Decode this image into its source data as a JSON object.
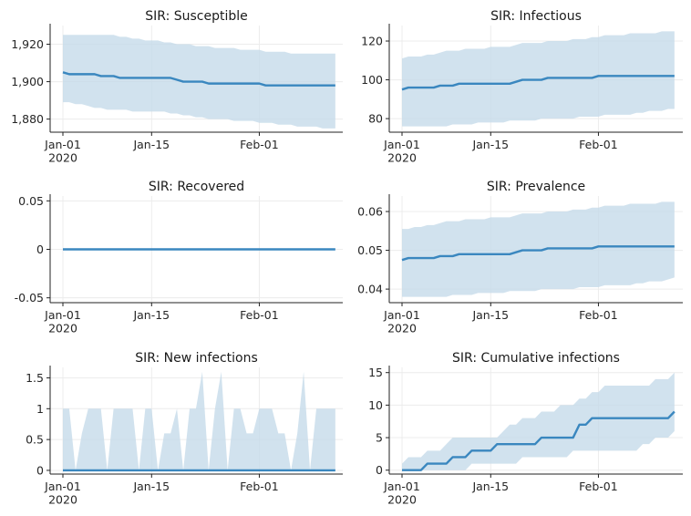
{
  "chart_data": [
    {
      "type": "line",
      "title": "SIR: Susceptible",
      "ylim": [
        1873,
        1930
      ],
      "yticks": [
        1880,
        1900,
        1920
      ],
      "ytick_labels": [
        "1,880",
        "1,900",
        "1,920"
      ],
      "x_start": "2020-01-01",
      "xticks": [
        "Jan-01\n2020",
        "Jan-15",
        "Feb-01"
      ],
      "grid": true,
      "mean": [
        1905,
        1904,
        1904,
        1904,
        1904,
        1904,
        1903,
        1903,
        1903,
        1902,
        1902,
        1902,
        1902,
        1902,
        1902,
        1902,
        1902,
        1902,
        1901,
        1900,
        1900,
        1900,
        1900,
        1899,
        1899,
        1899,
        1899,
        1899,
        1899,
        1899,
        1899,
        1899,
        1898,
        1898,
        1898,
        1898,
        1898,
        1898,
        1898,
        1898,
        1898,
        1898,
        1898,
        1898
      ],
      "lower": [
        1889,
        1889,
        1888,
        1888,
        1887,
        1886,
        1886,
        1885,
        1885,
        1885,
        1885,
        1884,
        1884,
        1884,
        1884,
        1884,
        1884,
        1883,
        1883,
        1882,
        1882,
        1881,
        1881,
        1880,
        1880,
        1880,
        1880,
        1879,
        1879,
        1879,
        1879,
        1878,
        1878,
        1878,
        1877,
        1877,
        1877,
        1876,
        1876,
        1876,
        1876,
        1875,
        1875,
        1875
      ],
      "upper": [
        1925,
        1925,
        1925,
        1925,
        1925,
        1925,
        1925,
        1925,
        1925,
        1924,
        1924,
        1923,
        1923,
        1922,
        1922,
        1922,
        1921,
        1921,
        1920,
        1920,
        1920,
        1919,
        1919,
        1919,
        1918,
        1918,
        1918,
        1918,
        1917,
        1917,
        1917,
        1917,
        1916,
        1916,
        1916,
        1916,
        1915,
        1915,
        1915,
        1915,
        1915,
        1915,
        1915,
        1915
      ]
    },
    {
      "type": "line",
      "title": "SIR: Infectious",
      "ylim": [
        73,
        128
      ],
      "yticks": [
        80,
        100,
        120
      ],
      "ytick_labels": [
        "80",
        "100",
        "120"
      ],
      "x_start": "2020-01-01",
      "xticks": [
        "Jan-01\n2020",
        "Jan-15",
        "Feb-01"
      ],
      "grid": true,
      "mean": [
        95,
        96,
        96,
        96,
        96,
        96,
        97,
        97,
        97,
        98,
        98,
        98,
        98,
        98,
        98,
        98,
        98,
        98,
        99,
        100,
        100,
        100,
        100,
        101,
        101,
        101,
        101,
        101,
        101,
        101,
        101,
        102,
        102,
        102,
        102,
        102,
        102,
        102,
        102,
        102,
        102,
        102,
        102,
        102
      ],
      "lower": [
        76,
        76,
        76,
        76,
        76,
        76,
        76,
        76,
        77,
        77,
        77,
        77,
        78,
        78,
        78,
        78,
        78,
        79,
        79,
        79,
        79,
        79,
        80,
        80,
        80,
        80,
        80,
        80,
        81,
        81,
        81,
        81,
        82,
        82,
        82,
        82,
        82,
        83,
        83,
        84,
        84,
        84,
        85,
        85
      ],
      "upper": [
        111,
        112,
        112,
        112,
        113,
        113,
        114,
        115,
        115,
        115,
        116,
        116,
        116,
        116,
        117,
        117,
        117,
        117,
        118,
        119,
        119,
        119,
        119,
        120,
        120,
        120,
        120,
        121,
        121,
        121,
        122,
        122,
        123,
        123,
        123,
        123,
        124,
        124,
        124,
        124,
        124,
        125,
        125,
        125
      ]
    },
    {
      "type": "line",
      "title": "SIR: Recovered",
      "ylim": [
        -0.055,
        0.055
      ],
      "yticks": [
        -0.05,
        0,
        0.05
      ],
      "ytick_labels": [
        "-0.05",
        "0",
        "0.05"
      ],
      "x_start": "2020-01-01",
      "xticks": [
        "Jan-01\n2020",
        "Jan-15",
        "Feb-01"
      ],
      "grid": true,
      "mean": [
        0,
        0,
        0,
        0,
        0,
        0,
        0,
        0,
        0,
        0,
        0,
        0,
        0,
        0,
        0,
        0,
        0,
        0,
        0,
        0,
        0,
        0,
        0,
        0,
        0,
        0,
        0,
        0,
        0,
        0,
        0,
        0,
        0,
        0,
        0,
        0,
        0,
        0,
        0,
        0,
        0,
        0,
        0,
        0
      ],
      "lower": [
        0,
        0,
        0,
        0,
        0,
        0,
        0,
        0,
        0,
        0,
        0,
        0,
        0,
        0,
        0,
        0,
        0,
        0,
        0,
        0,
        0,
        0,
        0,
        0,
        0,
        0,
        0,
        0,
        0,
        0,
        0,
        0,
        0,
        0,
        0,
        0,
        0,
        0,
        0,
        0,
        0,
        0,
        0,
        0
      ],
      "upper": [
        0,
        0,
        0,
        0,
        0,
        0,
        0,
        0,
        0,
        0,
        0,
        0,
        0,
        0,
        0,
        0,
        0,
        0,
        0,
        0,
        0,
        0,
        0,
        0,
        0,
        0,
        0,
        0,
        0,
        0,
        0,
        0,
        0,
        0,
        0,
        0,
        0,
        0,
        0,
        0,
        0,
        0,
        0,
        0
      ]
    },
    {
      "type": "line",
      "title": "SIR: Prevalence",
      "ylim": [
        0.0365,
        0.064
      ],
      "yticks": [
        0.04,
        0.05,
        0.06
      ],
      "ytick_labels": [
        "0.04",
        "0.05",
        "0.06"
      ],
      "x_start": "2020-01-01",
      "xticks": [
        "Jan-01\n2020",
        "Jan-15",
        "Feb-01"
      ],
      "grid": true,
      "mean": [
        0.0475,
        0.048,
        0.048,
        0.048,
        0.048,
        0.048,
        0.0485,
        0.0485,
        0.0485,
        0.049,
        0.049,
        0.049,
        0.049,
        0.049,
        0.049,
        0.049,
        0.049,
        0.049,
        0.0495,
        0.05,
        0.05,
        0.05,
        0.05,
        0.0505,
        0.0505,
        0.0505,
        0.0505,
        0.0505,
        0.0505,
        0.0505,
        0.0505,
        0.051,
        0.051,
        0.051,
        0.051,
        0.051,
        0.051,
        0.051,
        0.051,
        0.051,
        0.051,
        0.051,
        0.051,
        0.051
      ],
      "lower": [
        0.038,
        0.038,
        0.038,
        0.038,
        0.038,
        0.038,
        0.038,
        0.038,
        0.0385,
        0.0385,
        0.0385,
        0.0385,
        0.039,
        0.039,
        0.039,
        0.039,
        0.039,
        0.0395,
        0.0395,
        0.0395,
        0.0395,
        0.0395,
        0.04,
        0.04,
        0.04,
        0.04,
        0.04,
        0.04,
        0.0405,
        0.0405,
        0.0405,
        0.0405,
        0.041,
        0.041,
        0.041,
        0.041,
        0.041,
        0.0415,
        0.0415,
        0.042,
        0.042,
        0.042,
        0.0425,
        0.043
      ],
      "upper": [
        0.0555,
        0.0555,
        0.056,
        0.056,
        0.0565,
        0.0565,
        0.057,
        0.0575,
        0.0575,
        0.0575,
        0.058,
        0.058,
        0.058,
        0.058,
        0.0585,
        0.0585,
        0.0585,
        0.0585,
        0.059,
        0.0595,
        0.0595,
        0.0595,
        0.0595,
        0.06,
        0.06,
        0.06,
        0.06,
        0.0605,
        0.0605,
        0.0605,
        0.061,
        0.061,
        0.0615,
        0.0615,
        0.0615,
        0.0615,
        0.062,
        0.062,
        0.062,
        0.062,
        0.062,
        0.0625,
        0.0625,
        0.0625
      ]
    },
    {
      "type": "line",
      "title": "SIR: New infections",
      "ylim": [
        -0.06,
        1.67
      ],
      "yticks": [
        0,
        0.5,
        1,
        1.5
      ],
      "ytick_labels": [
        "0",
        "0.5",
        "1",
        "1.5"
      ],
      "x_start": "2020-01-01",
      "xticks": [
        "Jan-01\n2020",
        "Jan-15",
        "Feb-01"
      ],
      "grid": true,
      "mean": [
        0,
        0,
        0,
        0,
        0,
        0,
        0,
        0,
        0,
        0,
        0,
        0,
        0,
        0,
        0,
        0,
        0,
        0,
        0,
        0,
        0,
        0,
        0,
        0,
        0,
        0,
        0,
        0,
        0,
        0,
        0,
        0,
        0,
        0,
        0,
        0,
        0,
        0,
        0,
        0,
        0,
        0,
        0,
        0
      ],
      "lower": [
        0,
        0,
        0,
        0,
        0,
        0,
        0,
        0,
        0,
        0,
        0,
        0,
        0,
        0,
        0,
        0,
        0,
        0,
        0,
        0,
        0,
        0,
        0,
        0,
        0,
        0,
        0,
        0,
        0,
        0,
        0,
        0,
        0,
        0,
        0,
        0,
        0,
        0,
        0,
        0,
        0,
        0,
        0,
        0
      ],
      "upper": [
        1,
        1,
        0,
        0.6,
        1,
        1,
        1,
        0,
        1,
        1,
        1,
        1,
        0,
        1,
        1,
        0,
        0.6,
        0.6,
        1,
        0,
        1,
        1,
        1.6,
        0,
        1,
        1.6,
        0,
        1,
        1,
        0.6,
        0.6,
        1,
        1,
        1,
        0.6,
        0.6,
        0,
        0.6,
        1.6,
        0,
        1,
        1,
        1,
        1
      ]
    },
    {
      "type": "line",
      "title": "SIR: Cumulative infections",
      "ylim": [
        -0.6,
        15.8
      ],
      "yticks": [
        0,
        5,
        10,
        15
      ],
      "ytick_labels": [
        "0",
        "5",
        "10",
        "15"
      ],
      "x_start": "2020-01-01",
      "xticks": [
        "Jan-01\n2020",
        "Jan-15",
        "Feb-01"
      ],
      "grid": true,
      "mean": [
        0,
        0,
        0,
        0,
        1,
        1,
        1,
        1,
        2,
        2,
        2,
        3,
        3,
        3,
        3,
        4,
        4,
        4,
        4,
        4,
        4,
        4,
        5,
        5,
        5,
        5,
        5,
        5,
        7,
        7,
        8,
        8,
        8,
        8,
        8,
        8,
        8,
        8,
        8,
        8,
        8,
        8,
        8,
        9
      ],
      "lower": [
        0,
        0,
        0,
        0,
        0,
        0,
        0,
        0,
        0,
        0,
        0,
        1,
        1,
        1,
        1,
        1,
        1,
        1,
        1,
        2,
        2,
        2,
        2,
        2,
        2,
        2,
        2,
        3,
        3,
        3,
        3,
        3,
        3,
        3,
        3,
        3,
        3,
        3,
        4,
        4,
        5,
        5,
        5,
        6
      ],
      "upper": [
        1,
        2,
        2,
        2,
        3,
        3,
        3,
        4,
        5,
        5,
        5,
        5,
        5,
        5,
        5,
        5,
        6,
        7,
        7,
        8,
        8,
        8,
        9,
        9,
        9,
        10,
        10,
        10,
        11,
        11,
        12,
        12,
        13,
        13,
        13,
        13,
        13,
        13,
        13,
        13,
        14,
        14,
        14,
        15
      ]
    }
  ]
}
